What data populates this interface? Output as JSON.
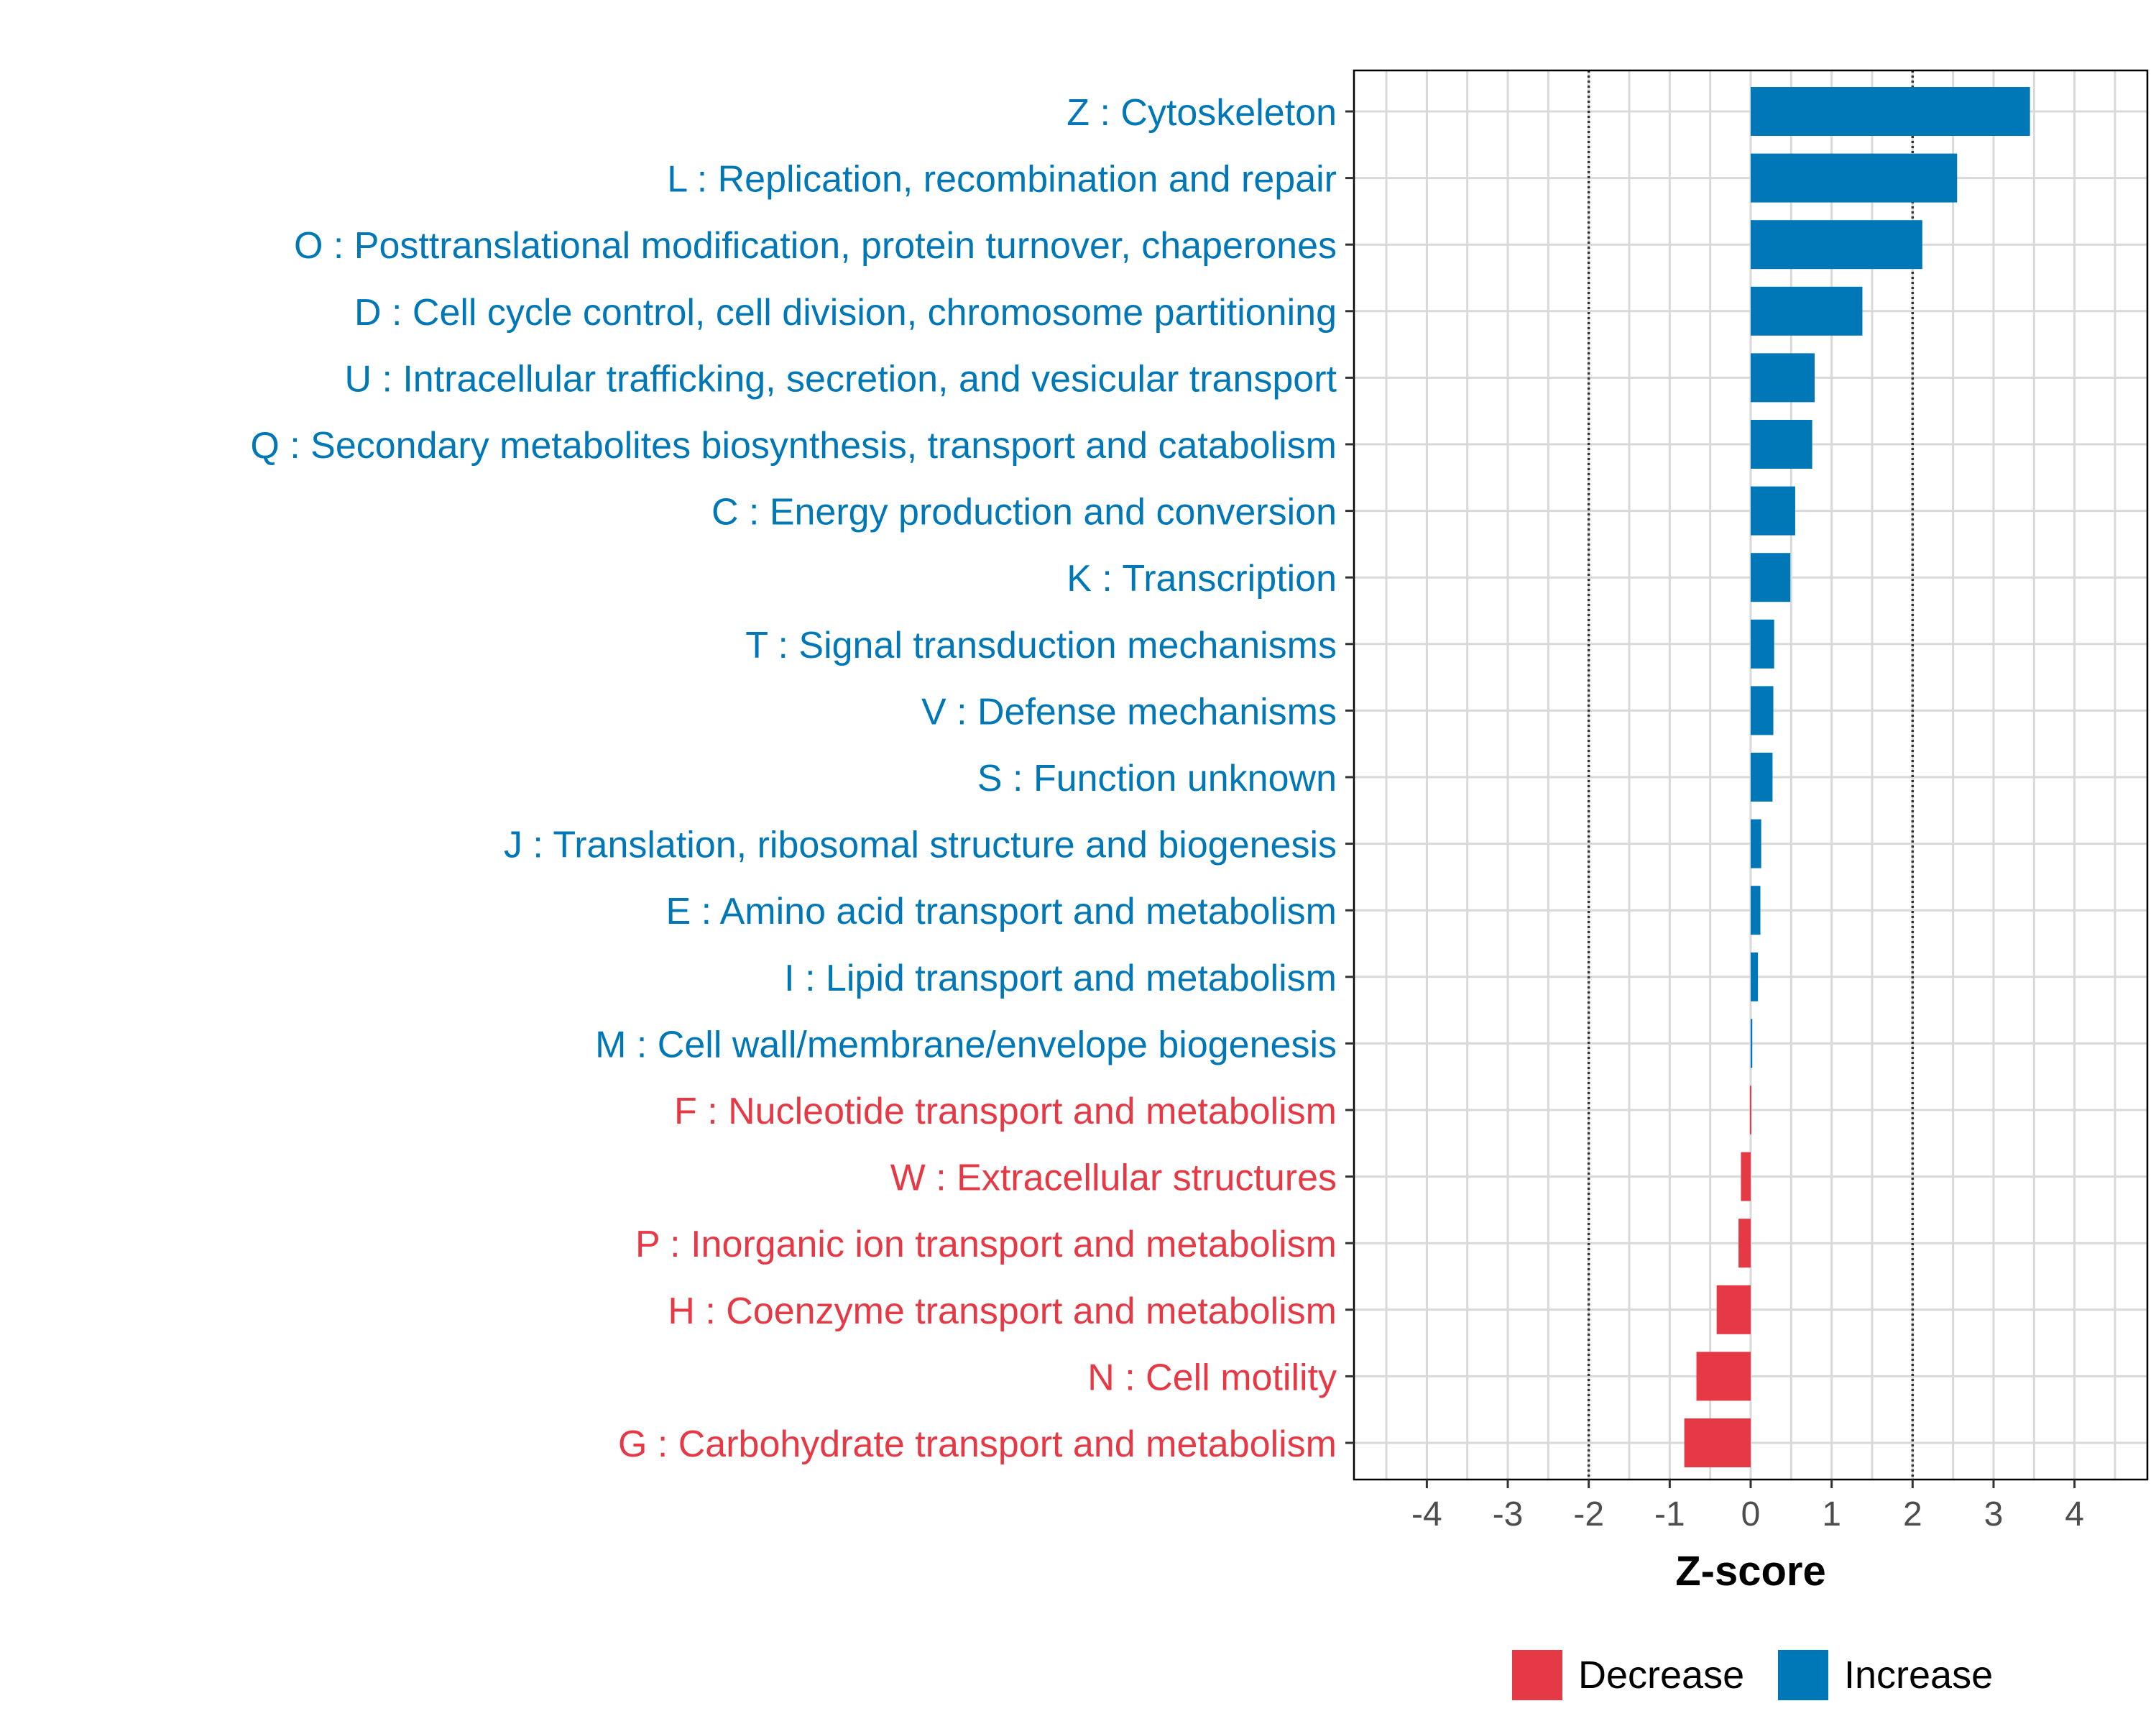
{
  "chart_data": {
    "type": "bar",
    "orientation": "horizontal",
    "xlabel": "Z-score",
    "xlim": [
      -4.9,
      4.9
    ],
    "xticks": [
      -4,
      -3,
      -2,
      -1,
      0,
      1,
      2,
      3,
      4
    ],
    "xtick_labels": [
      "-4",
      "-3",
      "-2",
      "-1",
      "0",
      "1",
      "2",
      "3",
      "4"
    ],
    "reference_lines": [
      -2,
      2
    ],
    "grid": true,
    "legend_position": "bottom",
    "legend": [
      {
        "name": "Decrease",
        "color": "#E63946"
      },
      {
        "name": "Increase",
        "color": "#0077B6"
      }
    ],
    "categories": [
      {
        "label": "Z : Cytoskeleton",
        "value": 3.45,
        "group": "Increase"
      },
      {
        "label": "L : Replication, recombination and repair",
        "value": 2.55,
        "group": "Increase"
      },
      {
        "label": "O : Posttranslational modification, protein turnover, chaperones",
        "value": 2.12,
        "group": "Increase"
      },
      {
        "label": "D : Cell cycle control, cell division, chromosome partitioning",
        "value": 1.38,
        "group": "Increase"
      },
      {
        "label": "U : Intracellular trafficking, secretion, and vesicular transport",
        "value": 0.79,
        "group": "Increase"
      },
      {
        "label": "Q : Secondary metabolites biosynthesis, transport and catabolism",
        "value": 0.76,
        "group": "Increase"
      },
      {
        "label": "C : Energy production and conversion",
        "value": 0.55,
        "group": "Increase"
      },
      {
        "label": "K : Transcription",
        "value": 0.49,
        "group": "Increase"
      },
      {
        "label": "T : Signal transduction mechanisms",
        "value": 0.29,
        "group": "Increase"
      },
      {
        "label": "V : Defense mechanisms",
        "value": 0.28,
        "group": "Increase"
      },
      {
        "label": "S : Function unknown",
        "value": 0.27,
        "group": "Increase"
      },
      {
        "label": "J : Translation, ribosomal structure and biogenesis",
        "value": 0.13,
        "group": "Increase"
      },
      {
        "label": "E : Amino acid transport and metabolism",
        "value": 0.12,
        "group": "Increase"
      },
      {
        "label": "I : Lipid transport and metabolism",
        "value": 0.09,
        "group": "Increase"
      },
      {
        "label": "M : Cell wall/membrane/envelope biogenesis",
        "value": 0.02,
        "group": "Increase"
      },
      {
        "label": "F : Nucleotide transport and metabolism",
        "value": -0.01,
        "group": "Decrease"
      },
      {
        "label": "W : Extracellular structures",
        "value": -0.12,
        "group": "Decrease"
      },
      {
        "label": "P : Inorganic ion transport and metabolism",
        "value": -0.15,
        "group": "Decrease"
      },
      {
        "label": "H : Coenzyme transport and metabolism",
        "value": -0.42,
        "group": "Decrease"
      },
      {
        "label": "N : Cell motility",
        "value": -0.67,
        "group": "Decrease"
      },
      {
        "label": "G : Carbohydrate transport and metabolism",
        "value": -0.82,
        "group": "Decrease"
      }
    ]
  }
}
